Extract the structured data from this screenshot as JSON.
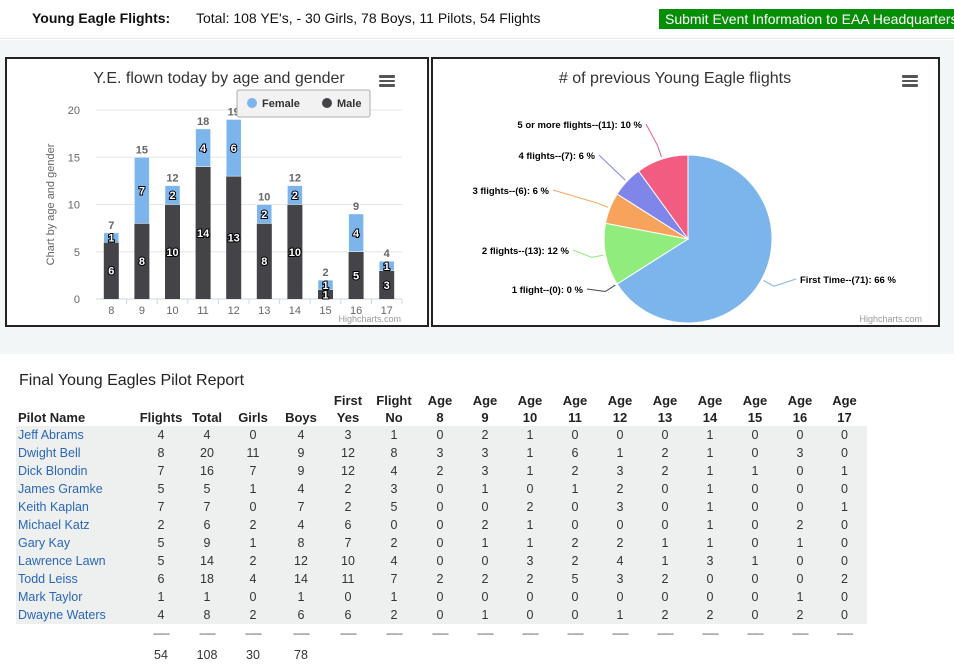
{
  "header": {
    "title": "Young Eagle Flights:",
    "totals": "Total: 108 YE's, - 30 Girls, 78 Boys, 11 Pilots, 54 Flights",
    "submit_button": "Submit Event Information to EAA Headquarters"
  },
  "charts_meta": {
    "credit": "Highcharts.com"
  },
  "chart_data": [
    {
      "type": "bar",
      "stacked": true,
      "title": "Y.E. flown today by age and gender",
      "ylabel": "Chart by age and gender",
      "xlabel": "",
      "ylim": [
        0,
        20
      ],
      "yticks": [
        "0",
        "5",
        "10",
        "15",
        "20"
      ],
      "categories": [
        "8",
        "9",
        "10",
        "11",
        "12",
        "13",
        "14",
        "15",
        "16",
        "17"
      ],
      "series": [
        {
          "name": "Female",
          "color": "#7cb5ec",
          "values": [
            1,
            7,
            2,
            4,
            6,
            2,
            2,
            1,
            4,
            1
          ]
        },
        {
          "name": "Male",
          "color": "#434348",
          "values": [
            6,
            8,
            10,
            14,
            13,
            8,
            10,
            1,
            5,
            3
          ]
        }
      ],
      "totals": [
        7,
        15,
        12,
        18,
        19,
        10,
        12,
        2,
        9,
        4
      ],
      "legend_position": "top-right"
    },
    {
      "type": "pie",
      "title": "# of previous Young Eagle flights",
      "slices": [
        {
          "label": "First Time--(71): 66 %",
          "value": 66,
          "color": "#7cb5ec"
        },
        {
          "label": "1 flight--(0): 0 %",
          "value": 0,
          "color": "#434348"
        },
        {
          "label": "2 flights--(13): 12 %",
          "value": 12,
          "color": "#90ed7d"
        },
        {
          "label": "3 flights--(6): 6 %",
          "value": 6,
          "color": "#f7a35c"
        },
        {
          "label": "4 flights--(7): 6 %",
          "value": 6,
          "color": "#8085e9"
        },
        {
          "label": "5 or more flights--(11): 10 %",
          "value": 10,
          "color": "#f15c80"
        }
      ]
    }
  ],
  "report": {
    "title": "Final Young Eagles Pilot Report",
    "columns": [
      [
        "Pilot Name"
      ],
      [
        "Flights"
      ],
      [
        "Total"
      ],
      [
        "Girls"
      ],
      [
        "Boys"
      ],
      [
        "First",
        "Yes"
      ],
      [
        "Flight",
        "No"
      ],
      [
        "Age",
        "8"
      ],
      [
        "Age",
        "9"
      ],
      [
        "Age",
        "10"
      ],
      [
        "Age",
        "11"
      ],
      [
        "Age",
        "12"
      ],
      [
        "Age",
        "13"
      ],
      [
        "Age",
        "14"
      ],
      [
        "Age",
        "15"
      ],
      [
        "Age",
        "16"
      ],
      [
        "Age",
        "17"
      ]
    ],
    "rows": [
      [
        "Jeff Abrams",
        "4",
        "4",
        "0",
        "4",
        "3",
        "1",
        "0",
        "2",
        "1",
        "0",
        "0",
        "0",
        "1",
        "0",
        "0",
        "0"
      ],
      [
        "Dwight Bell",
        "8",
        "20",
        "11",
        "9",
        "12",
        "8",
        "3",
        "3",
        "1",
        "6",
        "1",
        "2",
        "1",
        "0",
        "3",
        "0"
      ],
      [
        "Dick Blondin",
        "7",
        "16",
        "7",
        "9",
        "12",
        "4",
        "2",
        "3",
        "1",
        "2",
        "3",
        "2",
        "1",
        "1",
        "0",
        "1"
      ],
      [
        "James Gramke",
        "5",
        "5",
        "1",
        "4",
        "2",
        "3",
        "0",
        "1",
        "0",
        "1",
        "2",
        "0",
        "1",
        "0",
        "0",
        "0"
      ],
      [
        "Keith Kaplan",
        "7",
        "7",
        "0",
        "7",
        "2",
        "5",
        "0",
        "0",
        "2",
        "0",
        "3",
        "0",
        "1",
        "0",
        "0",
        "1"
      ],
      [
        "Michael Katz",
        "2",
        "6",
        "2",
        "4",
        "6",
        "0",
        "0",
        "2",
        "1",
        "0",
        "0",
        "0",
        "1",
        "0",
        "2",
        "0"
      ],
      [
        "Gary Kay",
        "5",
        "9",
        "1",
        "8",
        "7",
        "2",
        "0",
        "1",
        "1",
        "2",
        "2",
        "1",
        "1",
        "0",
        "1",
        "0"
      ],
      [
        "Lawrence Lawn",
        "5",
        "14",
        "2",
        "12",
        "10",
        "4",
        "0",
        "0",
        "3",
        "2",
        "4",
        "1",
        "3",
        "1",
        "0",
        "0"
      ],
      [
        "Todd Leiss",
        "6",
        "18",
        "4",
        "14",
        "11",
        "7",
        "2",
        "2",
        "2",
        "5",
        "3",
        "2",
        "0",
        "0",
        "0",
        "2"
      ],
      [
        "Mark Taylor",
        "1",
        "1",
        "0",
        "1",
        "0",
        "1",
        "0",
        "0",
        "0",
        "0",
        "0",
        "0",
        "0",
        "0",
        "1",
        "0"
      ],
      [
        "Dwayne Waters",
        "4",
        "8",
        "2",
        "6",
        "6",
        "2",
        "0",
        "1",
        "0",
        "0",
        "1",
        "2",
        "2",
        "0",
        "2",
        "0"
      ]
    ],
    "divider": "------",
    "totals": [
      "",
      "54",
      "108",
      "30",
      "78",
      "",
      "",
      "",
      "",
      "",
      "",
      "",
      "",
      "",
      "",
      "",
      ""
    ]
  }
}
